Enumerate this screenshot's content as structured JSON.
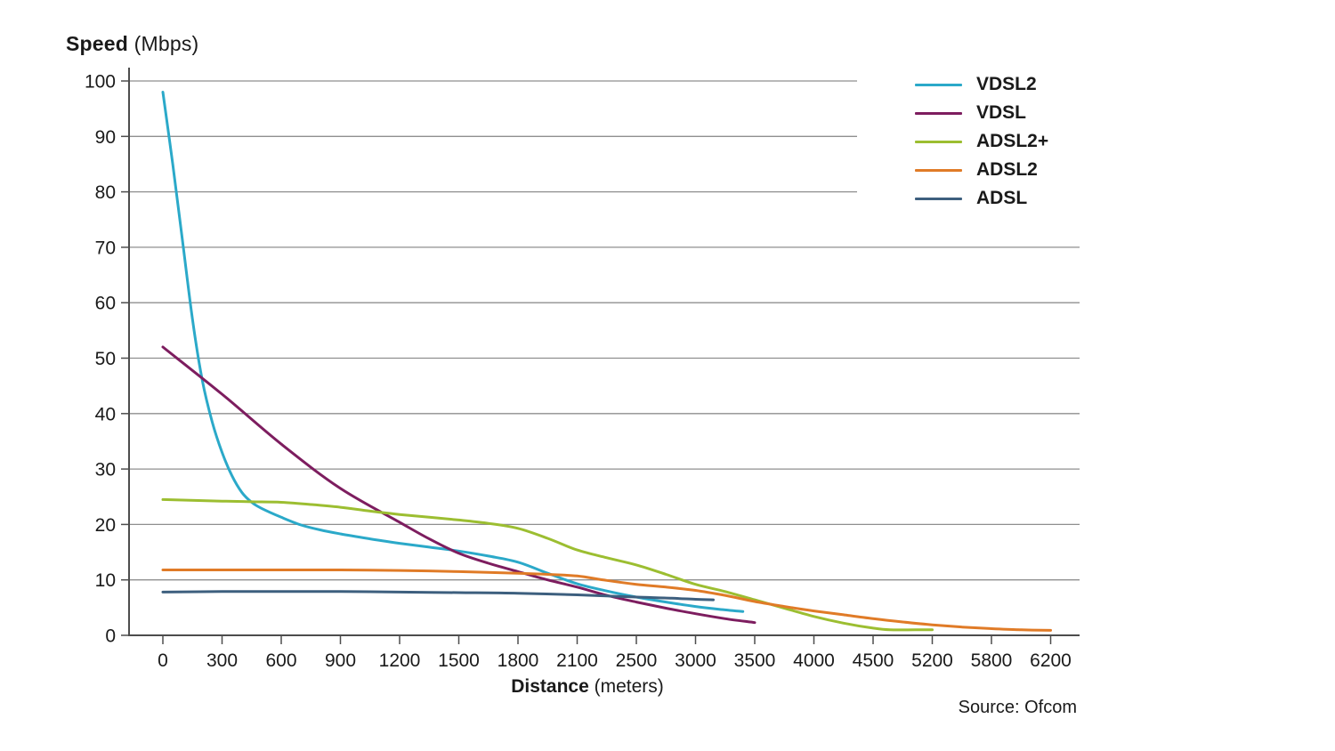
{
  "title": {
    "bold": "Speed",
    "unit": " (Mbps)"
  },
  "x_axis_label": {
    "bold": "Distance",
    "unit": " (meters)"
  },
  "source": "Source: Ofcom",
  "chart_data": {
    "type": "line",
    "title": "Speed (Mbps) vs Distance (meters)",
    "xlabel": "Distance (meters)",
    "ylabel": "Speed (Mbps)",
    "ylim": [
      0,
      100
    ],
    "y_ticks": [
      0,
      10,
      20,
      30,
      40,
      50,
      60,
      70,
      80,
      90,
      100
    ],
    "x_tick_values": [
      0,
      300,
      600,
      900,
      1200,
      1500,
      1800,
      2100,
      2500,
      3000,
      3500,
      4000,
      4500,
      5200,
      5800,
      6200
    ],
    "x_axis_type": "categorical-equal-spacing",
    "grid": true,
    "legend_position": "top-right",
    "series": [
      {
        "name": "VDSL2",
        "color": "#2BA9C9",
        "x": [
          0,
          50,
          100,
          150,
          200,
          250,
          300,
          350,
          400,
          450,
          500,
          600,
          700,
          800,
          900,
          1050,
          1200,
          1350,
          1500,
          1650,
          1800,
          1950,
          2100,
          2300,
          2500,
          2750,
          3000,
          3200,
          3400
        ],
        "y": [
          98,
          85,
          71,
          57,
          46,
          38.5,
          33,
          28.8,
          25.8,
          24,
          22.9,
          21.3,
          19.9,
          19,
          18.3,
          17.4,
          16.6,
          15.9,
          15.2,
          14.3,
          13.2,
          11.2,
          9.3,
          8,
          6.9,
          6,
          5.2,
          4.7,
          4.3
        ]
      },
      {
        "name": "VDSL",
        "color": "#7D1D5F",
        "x": [
          0,
          300,
          600,
          900,
          1200,
          1350,
          1500,
          1650,
          1800,
          1950,
          2100,
          2300,
          2500,
          2750,
          3000,
          3250,
          3500
        ],
        "y": [
          52,
          43.5,
          34.5,
          26.5,
          20.4,
          17.4,
          14.8,
          13,
          11.5,
          10,
          8.7,
          7.2,
          6,
          4.9,
          3.9,
          3,
          2.3
        ]
      },
      {
        "name": "ADSL2+",
        "color": "#9CBE31",
        "x": [
          0,
          300,
          450,
          600,
          750,
          900,
          1050,
          1200,
          1350,
          1500,
          1650,
          1800,
          1950,
          2100,
          2300,
          2500,
          2750,
          3000,
          3250,
          3500,
          3750,
          4000,
          4250,
          4500,
          4700,
          5000,
          5200
        ],
        "y": [
          24.5,
          24.2,
          24.1,
          24,
          23.6,
          23.1,
          22.4,
          21.8,
          21.3,
          20.8,
          20.2,
          19.3,
          17.5,
          15.4,
          14,
          12.7,
          11,
          9.2,
          7.9,
          6.4,
          4.9,
          3.4,
          2.2,
          1.3,
          1,
          1,
          1
        ]
      },
      {
        "name": "ADSL2",
        "color": "#E07B27",
        "x": [
          0,
          300,
          600,
          900,
          1200,
          1500,
          1800,
          1950,
          2100,
          2300,
          2500,
          2750,
          3000,
          3250,
          3500,
          3750,
          4000,
          4250,
          4500,
          4850,
          5200,
          5500,
          5800,
          6000,
          6200
        ],
        "y": [
          11.8,
          11.8,
          11.8,
          11.8,
          11.7,
          11.5,
          11.2,
          11,
          10.7,
          9.9,
          9.2,
          8.7,
          8.1,
          7.2,
          6.1,
          5.2,
          4.4,
          3.7,
          3,
          2.4,
          1.9,
          1.5,
          1.2,
          1,
          0.9
        ]
      },
      {
        "name": "ADSL",
        "color": "#3D5F7E",
        "x": [
          0,
          300,
          600,
          900,
          1200,
          1500,
          1800,
          2100,
          2500,
          2800,
          3000,
          3150
        ],
        "y": [
          7.8,
          7.9,
          7.9,
          7.9,
          7.8,
          7.7,
          7.6,
          7.3,
          6.9,
          6.7,
          6.5,
          6.4
        ]
      }
    ]
  }
}
